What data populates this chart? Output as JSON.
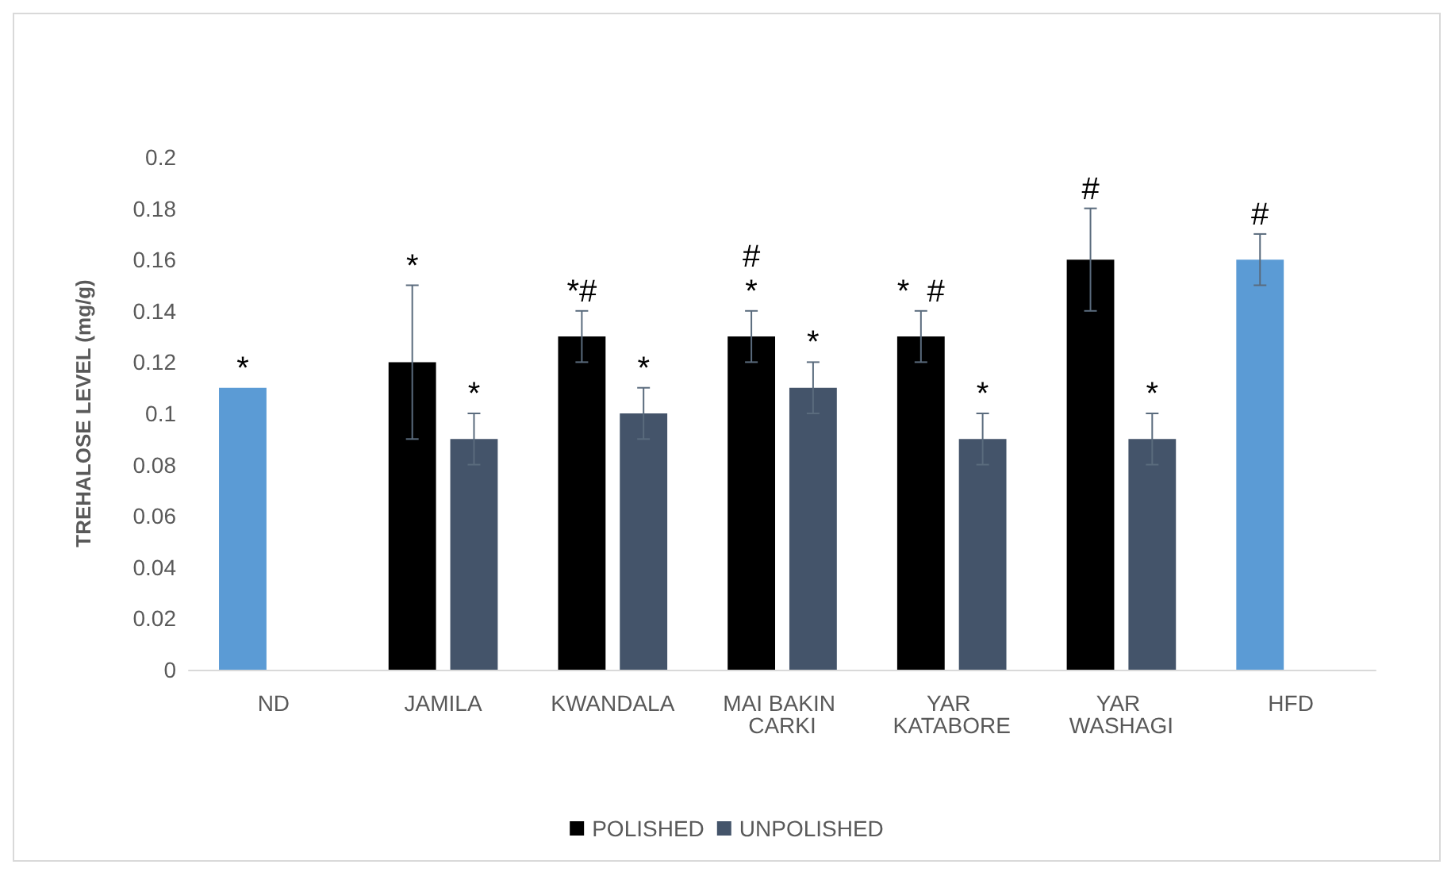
{
  "chart_data": {
    "type": "bar",
    "ylabel": "TREHALOSE LEVEL (mg/g)",
    "categories": [
      "ND",
      "JAMILA",
      "KWANDALA",
      "MAI BAKIN CARKI",
      "YAR KATABORE",
      "YAR WASHAGI",
      "HFD"
    ],
    "series": [
      {
        "name": "POLISHED",
        "color": "#000000",
        "colors": [
          "#5b9bd5",
          "#000000",
          "#000000",
          "#000000",
          "#000000",
          "#000000",
          "#5b9bd5"
        ],
        "values": [
          0.11,
          0.12,
          0.13,
          0.13,
          0.13,
          0.16,
          0.16
        ],
        "errors": [
          null,
          0.03,
          0.01,
          0.01,
          0.01,
          0.02,
          0.01
        ]
      },
      {
        "name": "UNPOLISHED",
        "color": "#44546a",
        "values": [
          null,
          0.09,
          0.1,
          0.11,
          0.09,
          0.09,
          null
        ],
        "errors": [
          null,
          0.01,
          0.01,
          0.01,
          0.01,
          0.01,
          null
        ]
      }
    ],
    "ylim": [
      0,
      0.2
    ],
    "yticks": [
      0,
      0.02,
      0.04,
      0.06,
      0.08,
      0.1,
      0.12,
      0.14,
      0.16,
      0.18,
      0.2
    ],
    "grid": false,
    "legend": "bottom",
    "annotations": [
      {
        "text": "*",
        "x": "ND",
        "y": 0.11
      },
      {
        "text": "*",
        "x": "JAMILA",
        "y": 0.09
      },
      {
        "text": "*",
        "x": "JAMILA",
        "y": 0.12
      },
      {
        "text": "*#",
        "x": "KWANDALA",
        "y": 0.13
      },
      {
        "text": "*",
        "x": "KWANDALA",
        "y": 0.1
      },
      {
        "text": "*",
        "x": "MAI BAKIN CARKI",
        "y": 0.13
      },
      {
        "text": "#",
        "x": "MAI BAKIN CARKI",
        "y": 0.13
      },
      {
        "text": "*",
        "x": "MAI BAKIN CARKI",
        "y": 0.11
      },
      {
        "text": "*  #",
        "x": "YAR KATABORE",
        "y": 0.13
      },
      {
        "text": "*",
        "x": "YAR KATABORE",
        "y": 0.09
      },
      {
        "text": "#",
        "x": "YAR WASHAGI",
        "y": 0.16
      },
      {
        "text": "*",
        "x": "YAR WASHAGI",
        "y": 0.09
      },
      {
        "text": "#",
        "x": "HFD",
        "y": 0.16
      }
    ]
  }
}
